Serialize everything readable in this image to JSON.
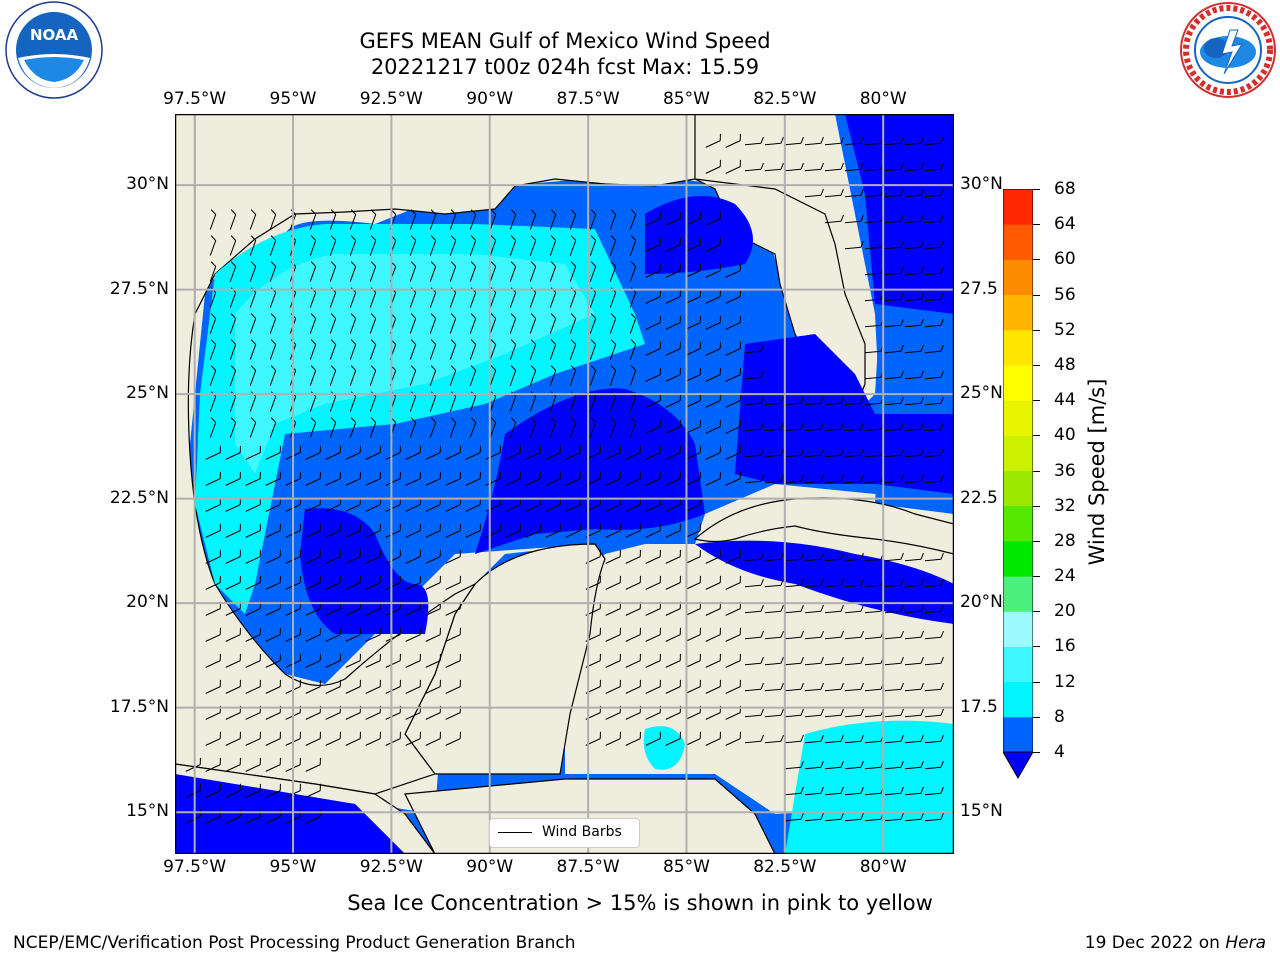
{
  "title_line1": "GEFS MEAN Gulf of Mexico Wind Speed",
  "title_line2": "20221217 t00z 024h fcst   Max: 15.59",
  "map": {
    "lon_labels": [
      "97.5°W",
      "95°W",
      "92.5°W",
      "90°W",
      "87.5°W",
      "85°W",
      "82.5°W",
      "80°W"
    ],
    "lon_values": [
      -97.5,
      -95,
      -92.5,
      -90,
      -87.5,
      -85,
      -82.5,
      -80
    ],
    "lat_labels_left": [
      "30°N",
      "27.5°N",
      "25°N",
      "22.5°N",
      "20°N",
      "17.5°N",
      "15°N"
    ],
    "lat_labels_right": [
      "30°N",
      "27.5",
      "25°N",
      "22.5",
      "20°N",
      "17.5",
      "15°N"
    ],
    "lat_values": [
      30,
      27.5,
      25,
      22.5,
      20,
      17.5,
      15
    ],
    "extent": {
      "lon_min": -98,
      "lon_max": -78.2,
      "lat_min": 14,
      "lat_max": 31.7
    },
    "colors": {
      "land": "#efedde",
      "grid": "#b0b0b0"
    }
  },
  "colorbar": {
    "label": "Wind Speed [m/s]",
    "ticks": [
      "4",
      "8",
      "12",
      "16",
      "20",
      "24",
      "28",
      "32",
      "36",
      "40",
      "44",
      "48",
      "52",
      "56",
      "60",
      "64",
      "68"
    ],
    "colors": [
      "#0064ff",
      "#00f5ff",
      "#3ff7ff",
      "#9bfbff",
      "#4af07b",
      "#00e800",
      "#55e800",
      "#9de800",
      "#cbf000",
      "#e8f400",
      "#ffff00",
      "#ffe600",
      "#ffb400",
      "#ff8c00",
      "#ff5a00",
      "#ff2800"
    ],
    "under_color": "#0000ff"
  },
  "legend": {
    "label": "Wind Barbs"
  },
  "footnote": "Sea Ice Concentration > 15% is shown in pink to yellow",
  "credit": "NCEP/EMC/Verification Post Processing Product Generation Branch",
  "date": "19 Dec 2022 on",
  "machine": "Hera",
  "logos": {
    "left": "noaa-logo",
    "left_text": "NOAA",
    "right": "nws-logo"
  }
}
